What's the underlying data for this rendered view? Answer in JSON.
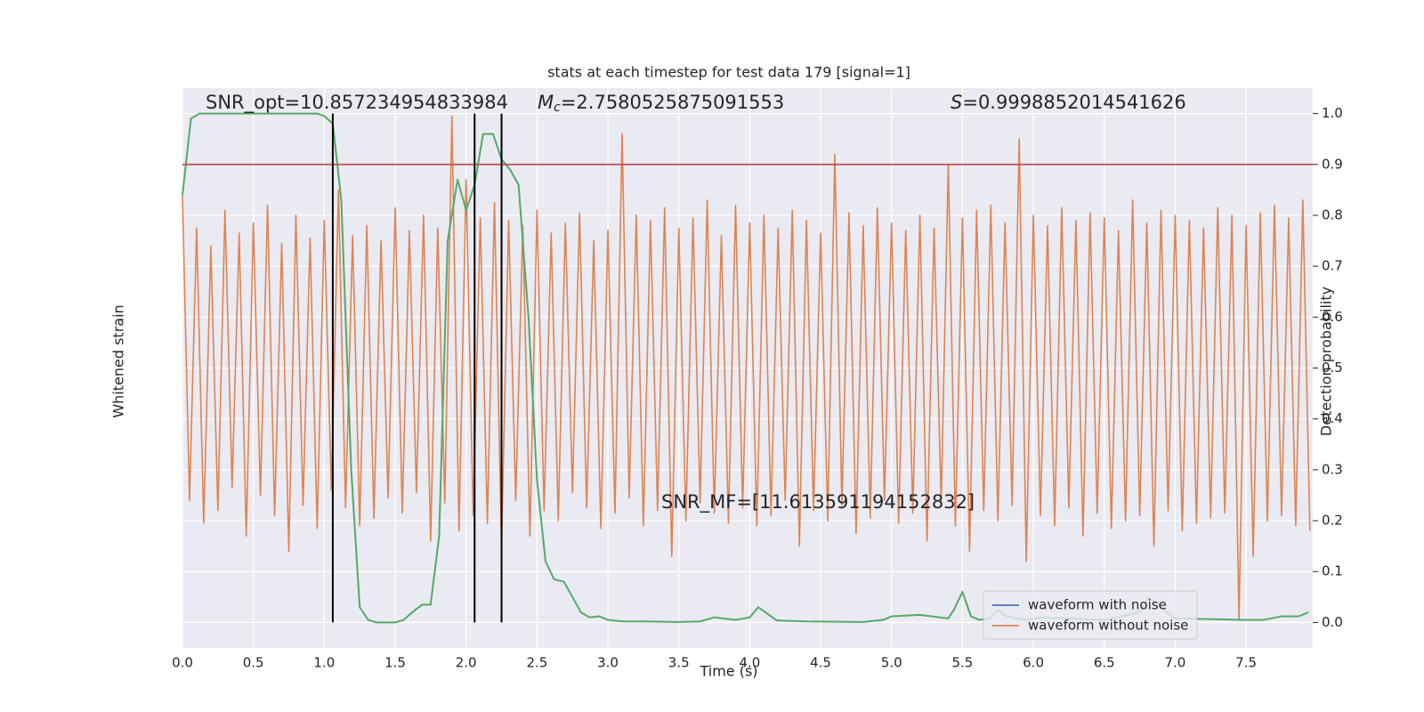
{
  "chart_data": {
    "type": "line",
    "title": "stats at each timestep for test data 179 [signal=1]",
    "xlabel": "Time (s)",
    "ylabel": "Whitened strain",
    "y2label": "Detection probability",
    "xlim": [
      0,
      7.97
    ],
    "ylim": [
      -1.1,
      1.1
    ],
    "y2lim": [
      -0.05,
      1.05
    ],
    "xticks": [
      {
        "value": 0,
        "label": "0.0"
      },
      0.5,
      {
        "value": 1,
        "label": "1.0"
      },
      1.5,
      {
        "value": 2,
        "label": "2.0"
      },
      2.5,
      {
        "value": 3,
        "label": "3.0"
      },
      3.5,
      {
        "value": 4,
        "label": "4.0"
      },
      4.5,
      {
        "value": 5,
        "label": "5.0"
      },
      5.5,
      {
        "value": 6,
        "label": "6.0"
      },
      6.5,
      {
        "value": 7,
        "label": "7.0"
      },
      7.5
    ],
    "y2ticks": [
      {
        "value": 0,
        "label": "0.0"
      },
      0.1,
      0.2,
      0.3,
      0.4,
      0.5,
      0.6,
      0.7,
      0.8,
      0.9,
      {
        "value": 1,
        "label": "1.0"
      }
    ],
    "grid": true,
    "legend_position": "lower right",
    "series": [
      {
        "name": "waveform with noise",
        "color": "#4c72b0"
      },
      {
        "name": "waveform without noise",
        "color": "#dd8452",
        "axis": "y",
        "x": [
          0.0,
          0.05,
          0.1,
          0.15,
          0.2,
          0.25,
          0.3,
          0.35,
          0.4,
          0.45,
          0.5,
          0.55,
          0.6,
          0.65,
          0.7,
          0.75,
          0.8,
          0.85,
          0.9,
          0.95,
          1.0,
          1.05,
          1.1,
          1.15,
          1.2,
          1.25,
          1.3,
          1.35,
          1.4,
          1.45,
          1.5,
          1.55,
          1.6,
          1.65,
          1.7,
          1.75,
          1.8,
          1.85,
          1.9,
          1.95,
          2.0,
          2.05,
          2.1,
          2.15,
          2.2,
          2.25,
          2.3,
          2.35,
          2.4,
          2.45,
          2.5,
          2.55,
          2.6,
          2.65,
          2.7,
          2.75,
          2.8,
          2.85,
          2.9,
          2.95,
          3.0,
          3.05,
          3.1,
          3.15,
          3.2,
          3.25,
          3.3,
          3.35,
          3.4,
          3.45,
          3.5,
          3.55,
          3.6,
          3.65,
          3.7,
          3.75,
          3.8,
          3.85,
          3.9,
          3.95,
          4.0,
          4.05,
          4.1,
          4.15,
          4.2,
          4.25,
          4.3,
          4.35,
          4.4,
          4.45,
          4.5,
          4.55,
          4.6,
          4.65,
          4.7,
          4.75,
          4.8,
          4.85,
          4.9,
          4.95,
          5.0,
          5.05,
          5.1,
          5.15,
          5.2,
          5.25,
          5.3,
          5.35,
          5.4,
          5.45,
          5.5,
          5.55,
          5.6,
          5.65,
          5.7,
          5.75,
          5.8,
          5.85,
          5.9,
          5.95,
          6.0,
          6.05,
          6.1,
          6.15,
          6.2,
          6.25,
          6.3,
          6.35,
          6.4,
          6.45,
          6.5,
          6.55,
          6.6,
          6.65,
          6.7,
          6.75,
          6.8,
          6.85,
          6.9,
          6.95,
          7.0,
          7.05,
          7.1,
          7.15,
          7.2,
          7.25,
          7.3,
          7.35,
          7.4,
          7.45,
          7.5,
          7.55,
          7.6,
          7.65,
          7.7,
          7.75,
          7.8,
          7.85,
          7.9,
          7.95
        ],
        "values": [
          0.68,
          -0.52,
          0.55,
          -0.61,
          0.48,
          -0.56,
          0.62,
          -0.47,
          0.53,
          -0.66,
          0.57,
          -0.5,
          0.64,
          -0.58,
          0.49,
          -0.72,
          0.6,
          -0.54,
          0.51,
          -0.63,
          0.58,
          -0.48,
          0.7,
          -0.55,
          0.52,
          -0.62,
          0.56,
          -0.59,
          0.5,
          -0.51,
          0.63,
          -0.57,
          0.54,
          -0.49,
          0.6,
          -0.68,
          0.55,
          -0.53,
          0.99,
          -0.64,
          0.74,
          -0.58,
          0.59,
          -0.61,
          0.65,
          -0.7,
          0.58,
          -0.52,
          0.56,
          -0.66,
          0.62,
          -0.56,
          0.53,
          -0.6,
          0.57,
          -0.49,
          0.61,
          -0.55,
          0.5,
          -0.63,
          0.54,
          -0.57,
          0.92,
          -0.51,
          0.6,
          -0.62,
          0.58,
          -0.56,
          0.63,
          -0.74,
          0.55,
          -0.6,
          0.59,
          -0.53,
          0.66,
          -0.57,
          0.52,
          -0.61,
          0.64,
          -0.55,
          0.57,
          -0.62,
          0.6,
          -0.58,
          0.55,
          -0.52,
          0.62,
          -0.7,
          0.58,
          -0.56,
          0.53,
          -0.6,
          0.84,
          -0.54,
          0.61,
          -0.65,
          0.56,
          -0.59,
          0.63,
          -0.52,
          0.57,
          -0.61,
          0.54,
          -0.57,
          0.6,
          -0.68,
          0.55,
          -0.53,
          0.8,
          -0.62,
          0.59,
          -0.72,
          0.62,
          -0.56,
          0.64,
          -0.6,
          0.57,
          -0.54,
          0.9,
          -0.76,
          0.6,
          -0.58,
          0.56,
          -0.62,
          0.63,
          -0.55,
          0.58,
          -0.66,
          0.61,
          -0.57,
          0.59,
          -0.63,
          0.54,
          -0.6,
          0.66,
          -0.58,
          0.57,
          -0.7,
          0.62,
          -0.56,
          0.6,
          -0.64,
          0.58,
          -0.61,
          0.55,
          -0.59,
          0.63,
          -0.57,
          0.6,
          -0.99,
          0.56,
          -0.74,
          0.61,
          -0.6,
          0.64,
          -0.58,
          0.59,
          -0.62,
          0.66,
          -0.64
        ]
      },
      {
        "color": "#55a868",
        "axis": "y2",
        "x": [
          0,
          0.06,
          0.12,
          0.5,
          0.95,
          1.0,
          1.06,
          1.12,
          1.19,
          1.25,
          1.31,
          1.37,
          1.44,
          1.5,
          1.56,
          1.62,
          1.69,
          1.75,
          1.81,
          1.87,
          1.94,
          2.0,
          2.06,
          2.12,
          2.19,
          2.25,
          2.31,
          2.37,
          2.44,
          2.5,
          2.56,
          2.62,
          2.69,
          2.75,
          2.81,
          2.87,
          2.94,
          3.0,
          3.1,
          3.25,
          3.5,
          3.65,
          3.75,
          3.9,
          4.0,
          4.06,
          4.12,
          4.19,
          4.4,
          4.8,
          4.94,
          5.0,
          5.2,
          5.4,
          5.44,
          5.5,
          5.56,
          5.62,
          5.69,
          5.75,
          5.81,
          5.94,
          6.06,
          6.5,
          6.75,
          6.81,
          6.87,
          6.94,
          7.0,
          7.5,
          7.62,
          7.75,
          7.87,
          7.94
        ],
        "values": [
          0.84,
          0.99,
          1.0,
          1.0,
          1.0,
          0.995,
          0.98,
          0.83,
          0.3,
          0.03,
          0.005,
          0.0,
          0.0,
          0.0,
          0.005,
          0.02,
          0.035,
          0.035,
          0.17,
          0.75,
          0.87,
          0.81,
          0.86,
          0.96,
          0.96,
          0.91,
          0.89,
          0.86,
          0.6,
          0.28,
          0.12,
          0.085,
          0.08,
          0.05,
          0.02,
          0.01,
          0.012,
          0.005,
          0.002,
          0.002,
          0.001,
          0.002,
          0.01,
          0.005,
          0.01,
          0.03,
          0.018,
          0.004,
          0.002,
          0.001,
          0.005,
          0.012,
          0.015,
          0.008,
          0.025,
          0.06,
          0.012,
          0.005,
          0.008,
          0.025,
          0.012,
          0.005,
          0.01,
          0.005,
          0.02,
          0.048,
          0.04,
          0.02,
          0.008,
          0.005,
          0.005,
          0.012,
          0.012,
          0.02
        ]
      }
    ],
    "hlines": [
      {
        "y": 0.9,
        "axis": "y2",
        "color": "#c44e52"
      }
    ],
    "vlines": {
      "x": [
        1.06,
        2.06,
        2.25
      ],
      "ymin": 0,
      "ymax": 1,
      "axis": "y2",
      "color": "#000000"
    },
    "annotations": [
      {
        "text": "SNR_opt=10.857234954833984"
      },
      {
        "symbol": "M",
        "subscript": "c",
        "text": "=2.7580525875091553"
      },
      {
        "symbol": "S",
        "text": "=0.9998852014541626"
      },
      {
        "text": "SNR_MF=[11.613591194152832]"
      }
    ]
  }
}
